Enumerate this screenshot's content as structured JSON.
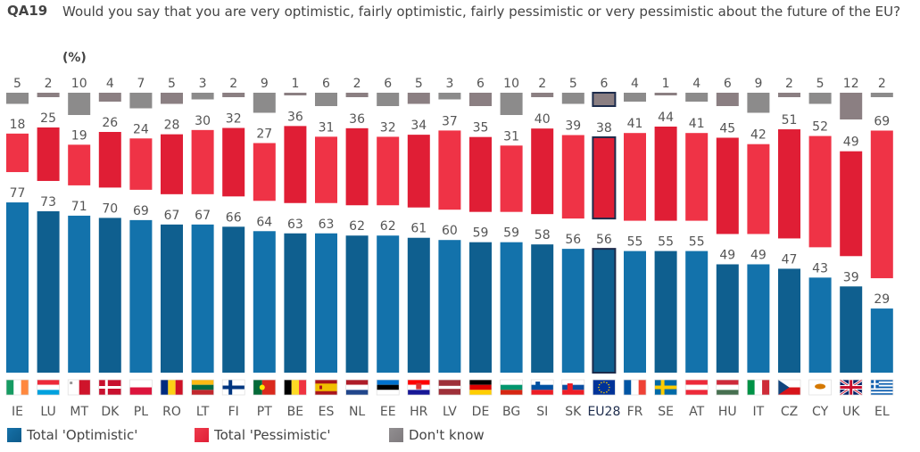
{
  "header": {
    "code": "QA19",
    "question": "Would you say that you are very optimistic, fairly optimistic, fairly pessimistic or very pessimistic about the future of the EU?",
    "unit": "(%)"
  },
  "colors": {
    "optimistic": "#1372ab",
    "optimistic_alt": "#0f5f8f",
    "pessimistic": "#ef3346",
    "pessimistic_alt": "#e01e35",
    "dont_know": "#8c8b8b",
    "dont_know_alt": "#8b7f82",
    "highlight_border": "#1d2c4c",
    "label_text": "#555555",
    "highlight_label": "#1d2c4c"
  },
  "legend": [
    {
      "key": "optimistic",
      "label": "Total 'Optimistic'"
    },
    {
      "key": "pessimistic",
      "label": "Total 'Pessimistic'"
    },
    {
      "key": "dont_know",
      "label": "Don't know"
    }
  ],
  "chart_data": {
    "type": "bar",
    "title": "Would you say that you are very optimistic, fairly optimistic, fairly pessimistic or very pessimistic about the future of the EU?",
    "unit": "%",
    "layout": "three stacked panels (Optimistic bottom, Pessimistic middle, Don't know top), one column per country",
    "highlight": "EU28",
    "categories": [
      "IE",
      "LU",
      "MT",
      "DK",
      "PL",
      "RO",
      "LT",
      "FI",
      "PT",
      "BE",
      "ES",
      "NL",
      "EE",
      "HR",
      "LV",
      "DE",
      "BG",
      "SI",
      "SK",
      "EU28",
      "FR",
      "SE",
      "AT",
      "HU",
      "IT",
      "CZ",
      "CY",
      "UK",
      "EL"
    ],
    "flags": [
      "ireland-flag",
      "luxembourg-flag",
      "malta-flag",
      "denmark-flag",
      "poland-flag",
      "romania-flag",
      "lithuania-flag",
      "finland-flag",
      "portugal-flag",
      "belgium-flag",
      "spain-flag",
      "netherlands-flag",
      "estonia-flag",
      "croatia-flag",
      "latvia-flag",
      "germany-flag",
      "bulgaria-flag",
      "slovenia-flag",
      "slovakia-flag",
      "eu-flag",
      "france-flag",
      "sweden-flag",
      "austria-flag",
      "hungary-flag",
      "italy-flag",
      "czechia-flag",
      "cyprus-flag",
      "uk-flag",
      "greece-flag"
    ],
    "series": [
      {
        "name": "Total 'Optimistic'",
        "key": "optimistic",
        "values": [
          77,
          73,
          71,
          70,
          69,
          67,
          67,
          66,
          64,
          63,
          63,
          62,
          62,
          61,
          60,
          59,
          59,
          58,
          56,
          56,
          55,
          55,
          55,
          49,
          49,
          47,
          43,
          39,
          29
        ]
      },
      {
        "name": "Total 'Pessimistic'",
        "key": "pessimistic",
        "values": [
          18,
          25,
          19,
          26,
          24,
          28,
          30,
          32,
          27,
          36,
          31,
          36,
          32,
          34,
          37,
          35,
          31,
          40,
          39,
          38,
          41,
          44,
          41,
          45,
          42,
          51,
          52,
          49,
          69
        ]
      },
      {
        "name": "Don't know",
        "key": "dont_know",
        "values": [
          5,
          2,
          10,
          4,
          7,
          5,
          3,
          2,
          9,
          1,
          6,
          2,
          6,
          5,
          3,
          6,
          10,
          2,
          5,
          6,
          4,
          1,
          4,
          6,
          9,
          2,
          5,
          12,
          2
        ]
      }
    ],
    "ylim": [
      0,
      100
    ],
    "legend_position": "bottom-left"
  }
}
